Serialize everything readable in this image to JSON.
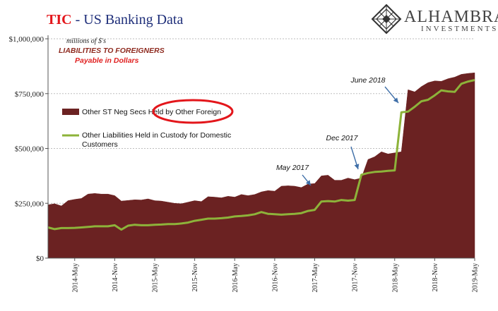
{
  "title": {
    "brand": "TIC",
    "separator": " - ",
    "text": "US Banking Data",
    "brand_color": "#e3161b",
    "text_color": "#1f2f7a"
  },
  "logo": {
    "name": "ALHAMBRA",
    "sub": "INVESTMENTS"
  },
  "units_note": "millions of $'s",
  "subtitle1": "LIABILITIES TO FOREIGNERS",
  "subtitle2": "Payable in Dollars",
  "colors": {
    "area": "#6b2222",
    "line": "#8db33a",
    "highlight": "#e3161b"
  },
  "chart_data": {
    "type": "area",
    "ylim": [
      0,
      1000000
    ],
    "y_ticks": [
      0,
      250000,
      500000,
      750000,
      1000000
    ],
    "y_tick_labels": [
      "$0",
      "$250,000",
      "$500,000",
      "$750,000",
      "$1,000,000"
    ],
    "x_tick_labels": [
      "2014-May",
      "2014-Nov",
      "2015-May",
      "2015-Nov",
      "2016-May",
      "2016-Nov",
      "2017-May",
      "2017-Nov",
      "2018-May",
      "2018-Nov",
      "2019-May"
    ],
    "x_start": "2014-01",
    "x_end": "2019-05",
    "grid": true,
    "legend_position": "left-middle",
    "series": [
      {
        "name": "Other ST Neg Secs Held by Other Foreign",
        "kind": "area",
        "values": [
          243000,
          248000,
          238000,
          262000,
          268000,
          272000,
          292000,
          295000,
          292000,
          292000,
          285000,
          260000,
          263000,
          266000,
          265000,
          270000,
          262000,
          260000,
          255000,
          250000,
          248000,
          255000,
          262000,
          258000,
          280000,
          278000,
          275000,
          282000,
          278000,
          290000,
          285000,
          290000,
          302000,
          308000,
          305000,
          328000,
          330000,
          328000,
          322000,
          338000,
          340000,
          375000,
          378000,
          355000,
          355000,
          365000,
          358000,
          365000,
          450000,
          462000,
          485000,
          475000,
          480000,
          485000,
          768000,
          758000,
          782000,
          800000,
          808000,
          806000,
          818000,
          825000,
          838000,
          842000,
          845000
        ]
      },
      {
        "name": "Other Liabilities Held in Custody for Domestic Customers",
        "kind": "line",
        "values": [
          140000,
          132000,
          137000,
          137000,
          138000,
          140000,
          142000,
          145000,
          145000,
          145000,
          150000,
          130000,
          148000,
          152000,
          150000,
          150000,
          152000,
          153000,
          155000,
          155000,
          158000,
          162000,
          170000,
          175000,
          180000,
          180000,
          182000,
          185000,
          190000,
          192000,
          195000,
          200000,
          210000,
          202000,
          200000,
          198000,
          200000,
          202000,
          205000,
          215000,
          220000,
          258000,
          260000,
          258000,
          265000,
          262000,
          265000,
          380000,
          388000,
          393000,
          395000,
          398000,
          400000,
          665000,
          668000,
          690000,
          715000,
          722000,
          742000,
          765000,
          760000,
          758000,
          795000,
          805000,
          812000
        ]
      }
    ],
    "annotations": [
      {
        "text": "May 2017",
        "x": "2017-05"
      },
      {
        "text": "Dec 2017",
        "x": "2017-12"
      },
      {
        "text": "June 2018",
        "x": "2018-06"
      }
    ]
  }
}
